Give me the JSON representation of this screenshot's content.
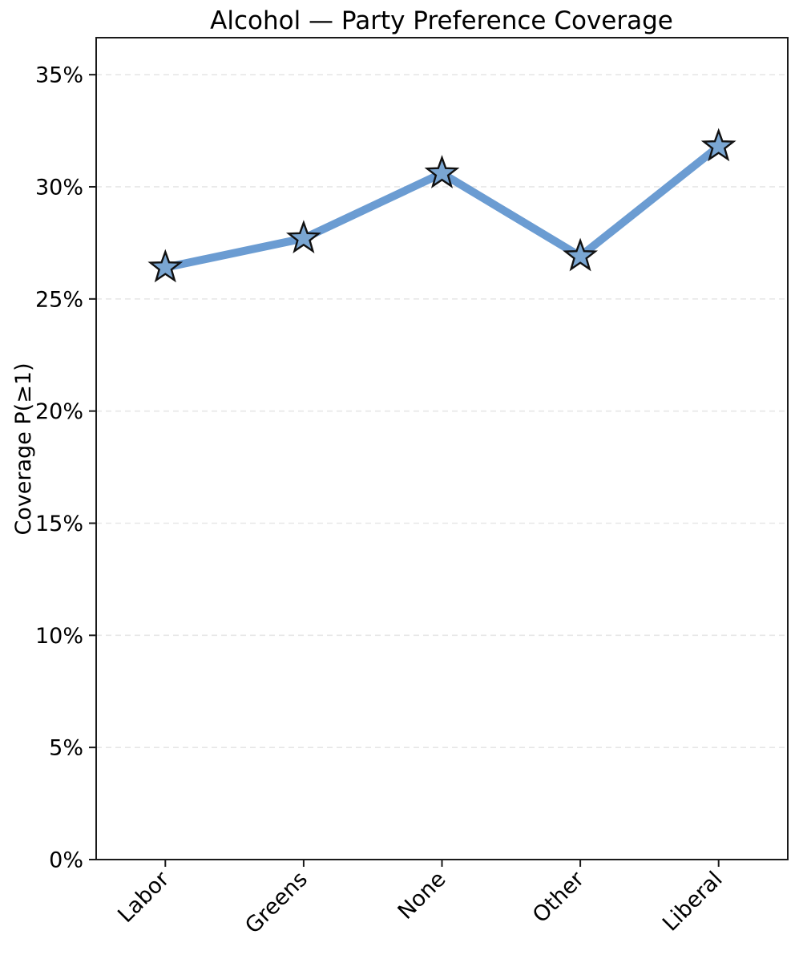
{
  "chart_data": {
    "type": "line",
    "title": "Alcohol — Party Preference Coverage",
    "ylabel": "Coverage P(≥1)",
    "xlabel": "",
    "categories": [
      "Labor",
      "Greens",
      "None",
      "Other",
      "Liberal"
    ],
    "series": [
      {
        "name": "Coverage P(≥1)",
        "values": [
          26.4,
          27.7,
          30.6,
          26.9,
          31.8
        ]
      }
    ],
    "yticks": [
      0,
      5,
      10,
      15,
      20,
      25,
      30,
      35
    ],
    "ytick_labels": [
      "0%",
      "5%",
      "10%",
      "15%",
      "20%",
      "25%",
      "30%",
      "35%"
    ],
    "ylim": [
      0,
      36.65
    ],
    "grid": "horizontal dashed",
    "legend": "none",
    "marker": "star",
    "colors": {
      "line": "#6b9cd2",
      "marker_fill": "#7aa6d2",
      "marker_edge": "#111111",
      "grid": "#e7e7e7",
      "spine": "#1a1a1a",
      "text": "#000000",
      "background": "#ffffff"
    }
  }
}
